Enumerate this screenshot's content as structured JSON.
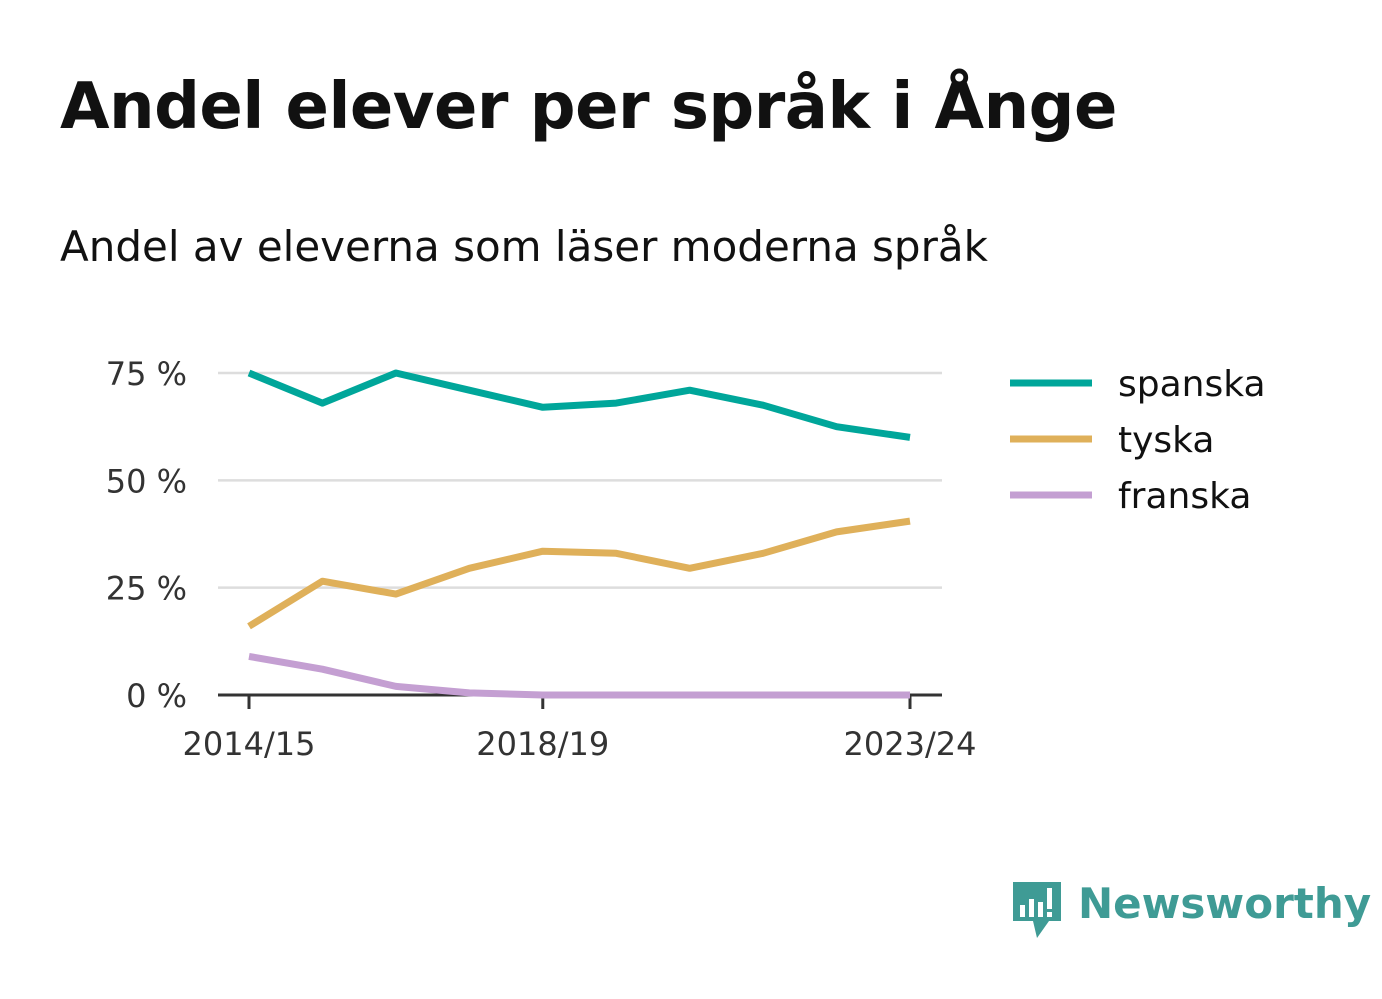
{
  "title": "Andel elever per språk i Ånge",
  "subtitle": "Andel av eleverna som läser moderna språk",
  "brand": {
    "name": "Newsworthy",
    "color": "#3f9b95",
    "logo_icon": "chart-speech-bubble-icon"
  },
  "chart_data": {
    "type": "line",
    "x": [
      "2014/15",
      "2015/16",
      "2016/17",
      "2017/18",
      "2018/19",
      "2019/20",
      "2020/21",
      "2021/22",
      "2022/23",
      "2023/24"
    ],
    "x_tick_labels": [
      "2014/15",
      "2018/19",
      "2023/24"
    ],
    "y_ticks": [
      0,
      25,
      50,
      75
    ],
    "y_tick_labels": [
      "0 %",
      "25 %",
      "50 %",
      "75 %"
    ],
    "ylim": [
      0,
      75
    ],
    "grid": true,
    "legend_position": "right",
    "series": [
      {
        "name": "spanska",
        "color": "#00a69a",
        "values": [
          75,
          68,
          75,
          71,
          67,
          68,
          71,
          67.5,
          62.5,
          60
        ]
      },
      {
        "name": "tyska",
        "color": "#dfb05a",
        "values": [
          16,
          26.5,
          23.5,
          29.5,
          33.5,
          33,
          29.5,
          33,
          38,
          40.5
        ]
      },
      {
        "name": "franska",
        "color": "#c49fd2",
        "values": [
          9,
          6,
          2,
          0.5,
          0,
          0,
          0,
          0,
          0,
          0
        ]
      }
    ]
  }
}
